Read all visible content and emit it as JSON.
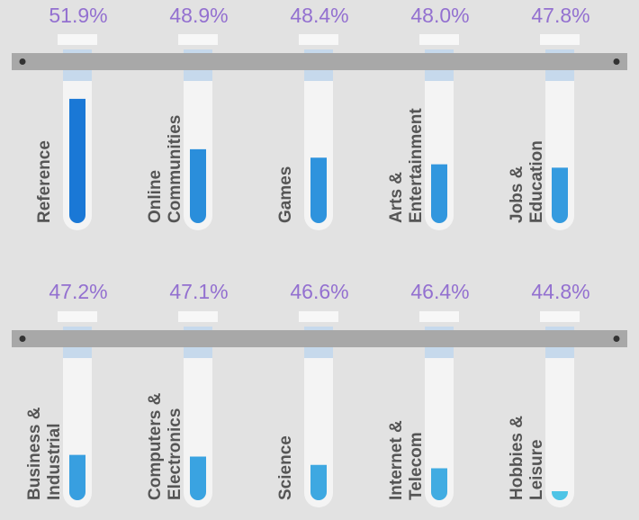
{
  "chart_data": {
    "type": "bar",
    "categories": [
      [
        "Reference"
      ],
      [
        "Online",
        "Communities"
      ],
      [
        "Games"
      ],
      [
        "Arts &",
        "Entertainment"
      ],
      [
        "Jobs &",
        "Education"
      ],
      [
        "Business &",
        "Industrial"
      ],
      [
        "Computers &",
        "Electronics"
      ],
      [
        "Science"
      ],
      [
        "Internet &",
        "Telecom"
      ],
      [
        "Hobbies &",
        "Leisure"
      ]
    ],
    "values": [
      51.9,
      48.9,
      48.4,
      48.0,
      47.8,
      47.2,
      47.1,
      46.6,
      46.4,
      44.8
    ],
    "labels": [
      "51.9%",
      "48.9%",
      "48.4%",
      "48.0%",
      "47.8%",
      "47.2%",
      "47.1%",
      "46.6%",
      "46.4%",
      "44.8%"
    ],
    "fill_colors": [
      "#1a78d6",
      "#2a8edb",
      "#2e93dd",
      "#3297de",
      "#359bdf",
      "#389fe0",
      "#3aa3e1",
      "#3ea8e1",
      "#41ace2",
      "#4ec4e6"
    ],
    "ylim": [
      44.5,
      53.5
    ],
    "colors": {
      "background": "#e2e2e2",
      "rack": "#a8a8a8",
      "tube": "#f4f4f4",
      "tube_band": "#c6d9ec",
      "percent_text": "#9370d0",
      "label_text": "#555555"
    }
  }
}
